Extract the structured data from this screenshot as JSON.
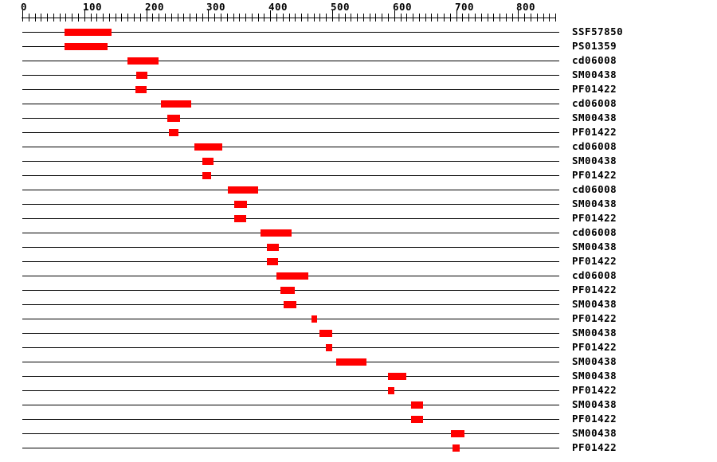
{
  "chart_data": {
    "type": "bar",
    "subtype": "protein-domain-interval-track-plot",
    "title": "",
    "legend": "none",
    "axis": {
      "position": "top",
      "min": 0,
      "max": 860,
      "minor_tick_step": 10,
      "major_tick_step": 100,
      "major_tick_values": [
        0,
        100,
        200,
        300,
        400,
        500,
        600,
        700,
        800
      ],
      "labels": [
        "0",
        "100",
        "200",
        "300",
        "400",
        "500",
        "600",
        "700",
        "800"
      ]
    },
    "track_length": 866,
    "rows": [
      {
        "label": "SSF57850",
        "start": 68,
        "end": 144
      },
      {
        "label": "PS01359",
        "start": 68,
        "end": 137
      },
      {
        "label": "cd06008",
        "start": 170,
        "end": 220
      },
      {
        "label": "SM00438",
        "start": 184,
        "end": 202
      },
      {
        "label": "PF01422",
        "start": 182,
        "end": 200
      },
      {
        "label": "cd06008",
        "start": 224,
        "end": 273
      },
      {
        "label": "SM00438",
        "start": 234,
        "end": 254
      },
      {
        "label": "PF01422",
        "start": 237,
        "end": 252
      },
      {
        "label": "cd06008",
        "start": 278,
        "end": 323
      },
      {
        "label": "SM00438",
        "start": 290,
        "end": 308
      },
      {
        "label": "PF01422",
        "start": 290,
        "end": 305
      },
      {
        "label": "cd06008",
        "start": 331,
        "end": 380
      },
      {
        "label": "SM00438",
        "start": 342,
        "end": 362
      },
      {
        "label": "PF01422",
        "start": 342,
        "end": 361
      },
      {
        "label": "cd06008",
        "start": 384,
        "end": 434
      },
      {
        "label": "SM00438",
        "start": 394,
        "end": 414
      },
      {
        "label": "PF01422",
        "start": 394,
        "end": 413
      },
      {
        "label": "cd06008",
        "start": 410,
        "end": 462
      },
      {
        "label": "PF01422",
        "start": 416,
        "end": 440
      },
      {
        "label": "SM00438",
        "start": 421,
        "end": 442
      },
      {
        "label": "PF01422",
        "start": 467,
        "end": 475
      },
      {
        "label": "SM00438",
        "start": 479,
        "end": 500
      },
      {
        "label": "PF01422",
        "start": 490,
        "end": 500
      },
      {
        "label": "SM00438",
        "start": 507,
        "end": 555
      },
      {
        "label": "SM00438",
        "start": 590,
        "end": 620
      },
      {
        "label": "PF01422",
        "start": 590,
        "end": 600
      },
      {
        "label": "SM00438",
        "start": 627,
        "end": 646
      },
      {
        "label": "PF01422",
        "start": 627,
        "end": 646
      },
      {
        "label": "SM00438",
        "start": 691,
        "end": 713
      },
      {
        "label": "PF01422",
        "start": 694,
        "end": 706
      }
    ],
    "colors": {
      "domain": "#ff0000",
      "line": "#000000",
      "text": "#000000",
      "background": "#ffffff"
    }
  }
}
